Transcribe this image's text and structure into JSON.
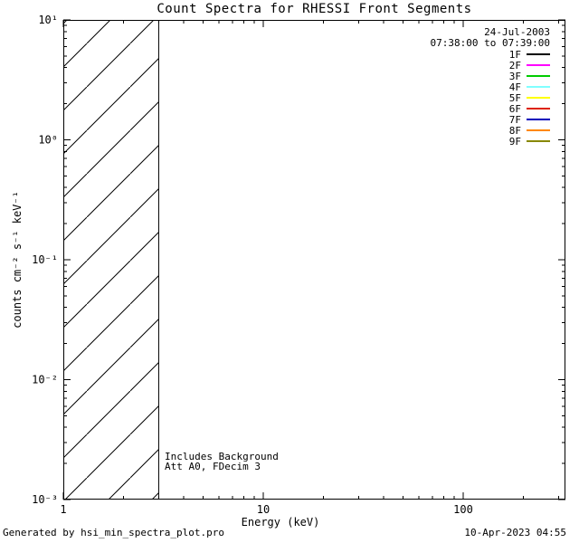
{
  "chart_data": {
    "type": "line",
    "title": "Count Spectra for RHESSI Front Segments",
    "xlabel": "Energy (keV)",
    "ylabel": "counts cm⁻² s⁻¹ keV⁻¹",
    "x_scale": "log",
    "y_scale": "log",
    "xlim": [
      1,
      324
    ],
    "ylim": [
      0.001,
      10
    ],
    "grid": false,
    "x_ticks": [
      {
        "v": 1,
        "label": "1"
      },
      {
        "v": 10,
        "label": "10"
      },
      {
        "v": 100,
        "label": "100"
      }
    ],
    "y_ticks": [
      {
        "v": 10,
        "label": "10¹"
      },
      {
        "v": 1,
        "label": "10⁰"
      },
      {
        "v": 0.1,
        "label": "10⁻¹"
      },
      {
        "v": 0.01,
        "label": "10⁻²"
      },
      {
        "v": 0.001,
        "label": "10⁻³"
      }
    ],
    "date_label": "24-Jul-2003",
    "time_label": "07:38:00 to 07:39:00",
    "legend_position": "top-right",
    "legend": [
      {
        "label": "1F",
        "color": "#000000"
      },
      {
        "label": "2F",
        "color": "#ff00ff"
      },
      {
        "label": "3F",
        "color": "#00cc00"
      },
      {
        "label": "4F",
        "color": "#80ffff"
      },
      {
        "label": "5F",
        "color": "#ffff00"
      },
      {
        "label": "6F",
        "color": "#dd2200"
      },
      {
        "label": "7F",
        "color": "#0000bb"
      },
      {
        "label": "8F",
        "color": "#ff8800"
      },
      {
        "label": "9F",
        "color": "#888800"
      }
    ],
    "annotations": [
      "Includes Background",
      "Att A0, FDecim 3"
    ],
    "hatched_region": {
      "x_start": 1,
      "x_end": 3,
      "style": "diagonal-hatch"
    },
    "series": []
  },
  "footer": {
    "left": "Generated by hsi_min_spectra_plot.pro",
    "right": "10-Apr-2023 04:55"
  }
}
